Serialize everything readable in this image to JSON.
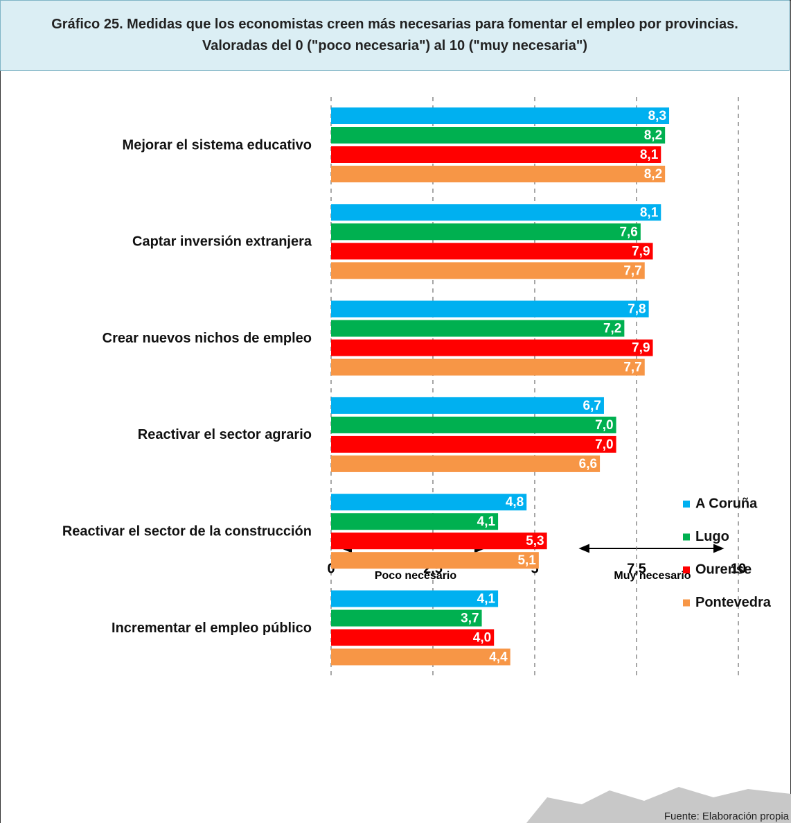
{
  "chart_data": {
    "type": "bar",
    "orientation": "horizontal",
    "title": "Gráfico 25. Medidas que los economistas creen más necesarias para fomentar el empleo por provincias. Valoradas del 0 (\"poco necesaria\") al 10 (\"muy necesaria\")",
    "categories": [
      "Mejorar el sistema educativo",
      "Captar inversión extranjera",
      "Crear nuevos nichos de empleo",
      "Reactivar el sector agrario",
      "Reactivar el sector de la construcción",
      "Incrementar el empleo público"
    ],
    "series": [
      {
        "name": "A Coruña",
        "color": "#00b0f0",
        "values": [
          8.3,
          8.1,
          7.8,
          6.7,
          4.8,
          4.1
        ],
        "value_labels": [
          "8,3",
          "8,1",
          "7,8",
          "6,7",
          "4,8",
          "4,1"
        ]
      },
      {
        "name": "Lugo",
        "color": "#00b050",
        "values": [
          8.2,
          7.6,
          7.2,
          7.0,
          4.1,
          3.7
        ],
        "value_labels": [
          "8,2",
          "7,6",
          "7,2",
          "7,0",
          "4,1",
          "3,7"
        ]
      },
      {
        "name": "Ourense",
        "color": "#ff0000",
        "values": [
          8.1,
          7.9,
          7.9,
          7.0,
          5.3,
          4.0
        ],
        "value_labels": [
          "8,1",
          "7,9",
          "7,9",
          "7,0",
          "5,3",
          "4,0"
        ]
      },
      {
        "name": "Pontevedra",
        "color": "#f79646",
        "values": [
          8.2,
          7.7,
          7.7,
          6.6,
          5.1,
          4.4
        ],
        "value_labels": [
          "8,2",
          "7,7",
          "7,7",
          "6,6",
          "5,1",
          "4,4"
        ]
      }
    ],
    "xlim": [
      0,
      10
    ],
    "xticks": [
      0,
      {
        "value": 2.5,
        "label": "2,5"
      },
      5,
      {
        "value": 7.5,
        "label": "7,5"
      },
      10
    ],
    "grid": true,
    "legend": "right",
    "annotations": [
      "Poco necesario",
      "Muy necesario"
    ],
    "source": "Fuente: Elaboración propia"
  }
}
